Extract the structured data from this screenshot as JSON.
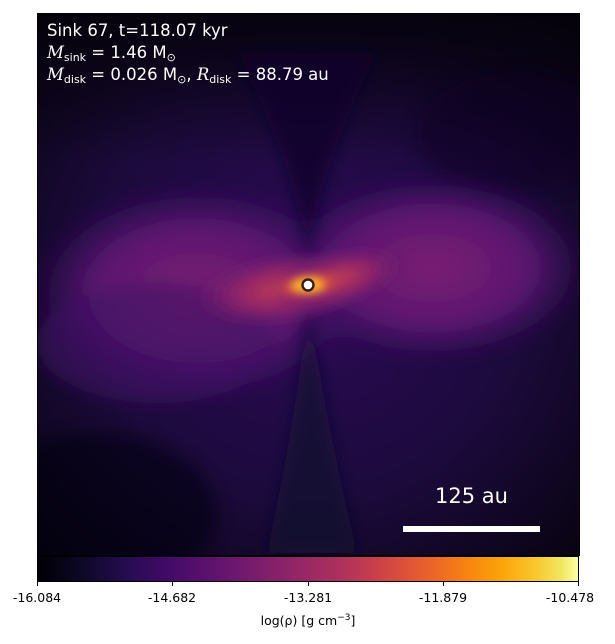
{
  "annotation": {
    "line1": "Sink 67, t=118.07 kyr",
    "msink_symbol": "M",
    "msink_sub": "sink",
    "msink_text": " = 1.46 M",
    "msink_sun_sub": "⊙",
    "mdisk_symbol": "M",
    "mdisk_sub": "disk",
    "mdisk_text": " = 0.026 M",
    "mdisk_sun_sub": "⊙",
    "rdisk_sep": ", ",
    "rdisk_symbol": "R",
    "rdisk_sub": "disk",
    "rdisk_text": " = 88.79 au"
  },
  "scalebar": {
    "label": "125 au"
  },
  "colorbar": {
    "colormap": "inferno",
    "ticks": [
      "-16.084",
      "-14.682",
      "-13.281",
      "-11.879",
      "-10.478"
    ],
    "label_main": "log(ρ) [g cm",
    "label_exp": "−3",
    "label_end": "]"
  },
  "colors": {
    "background_dark": "#0a0418",
    "envelope": "#3a0f63",
    "outflow_lobes": "#6a1a74",
    "disk_hot": "#f0742a",
    "sink_marker_fill": "#ffffff",
    "sink_marker_edge": "#3a1a1a"
  }
}
